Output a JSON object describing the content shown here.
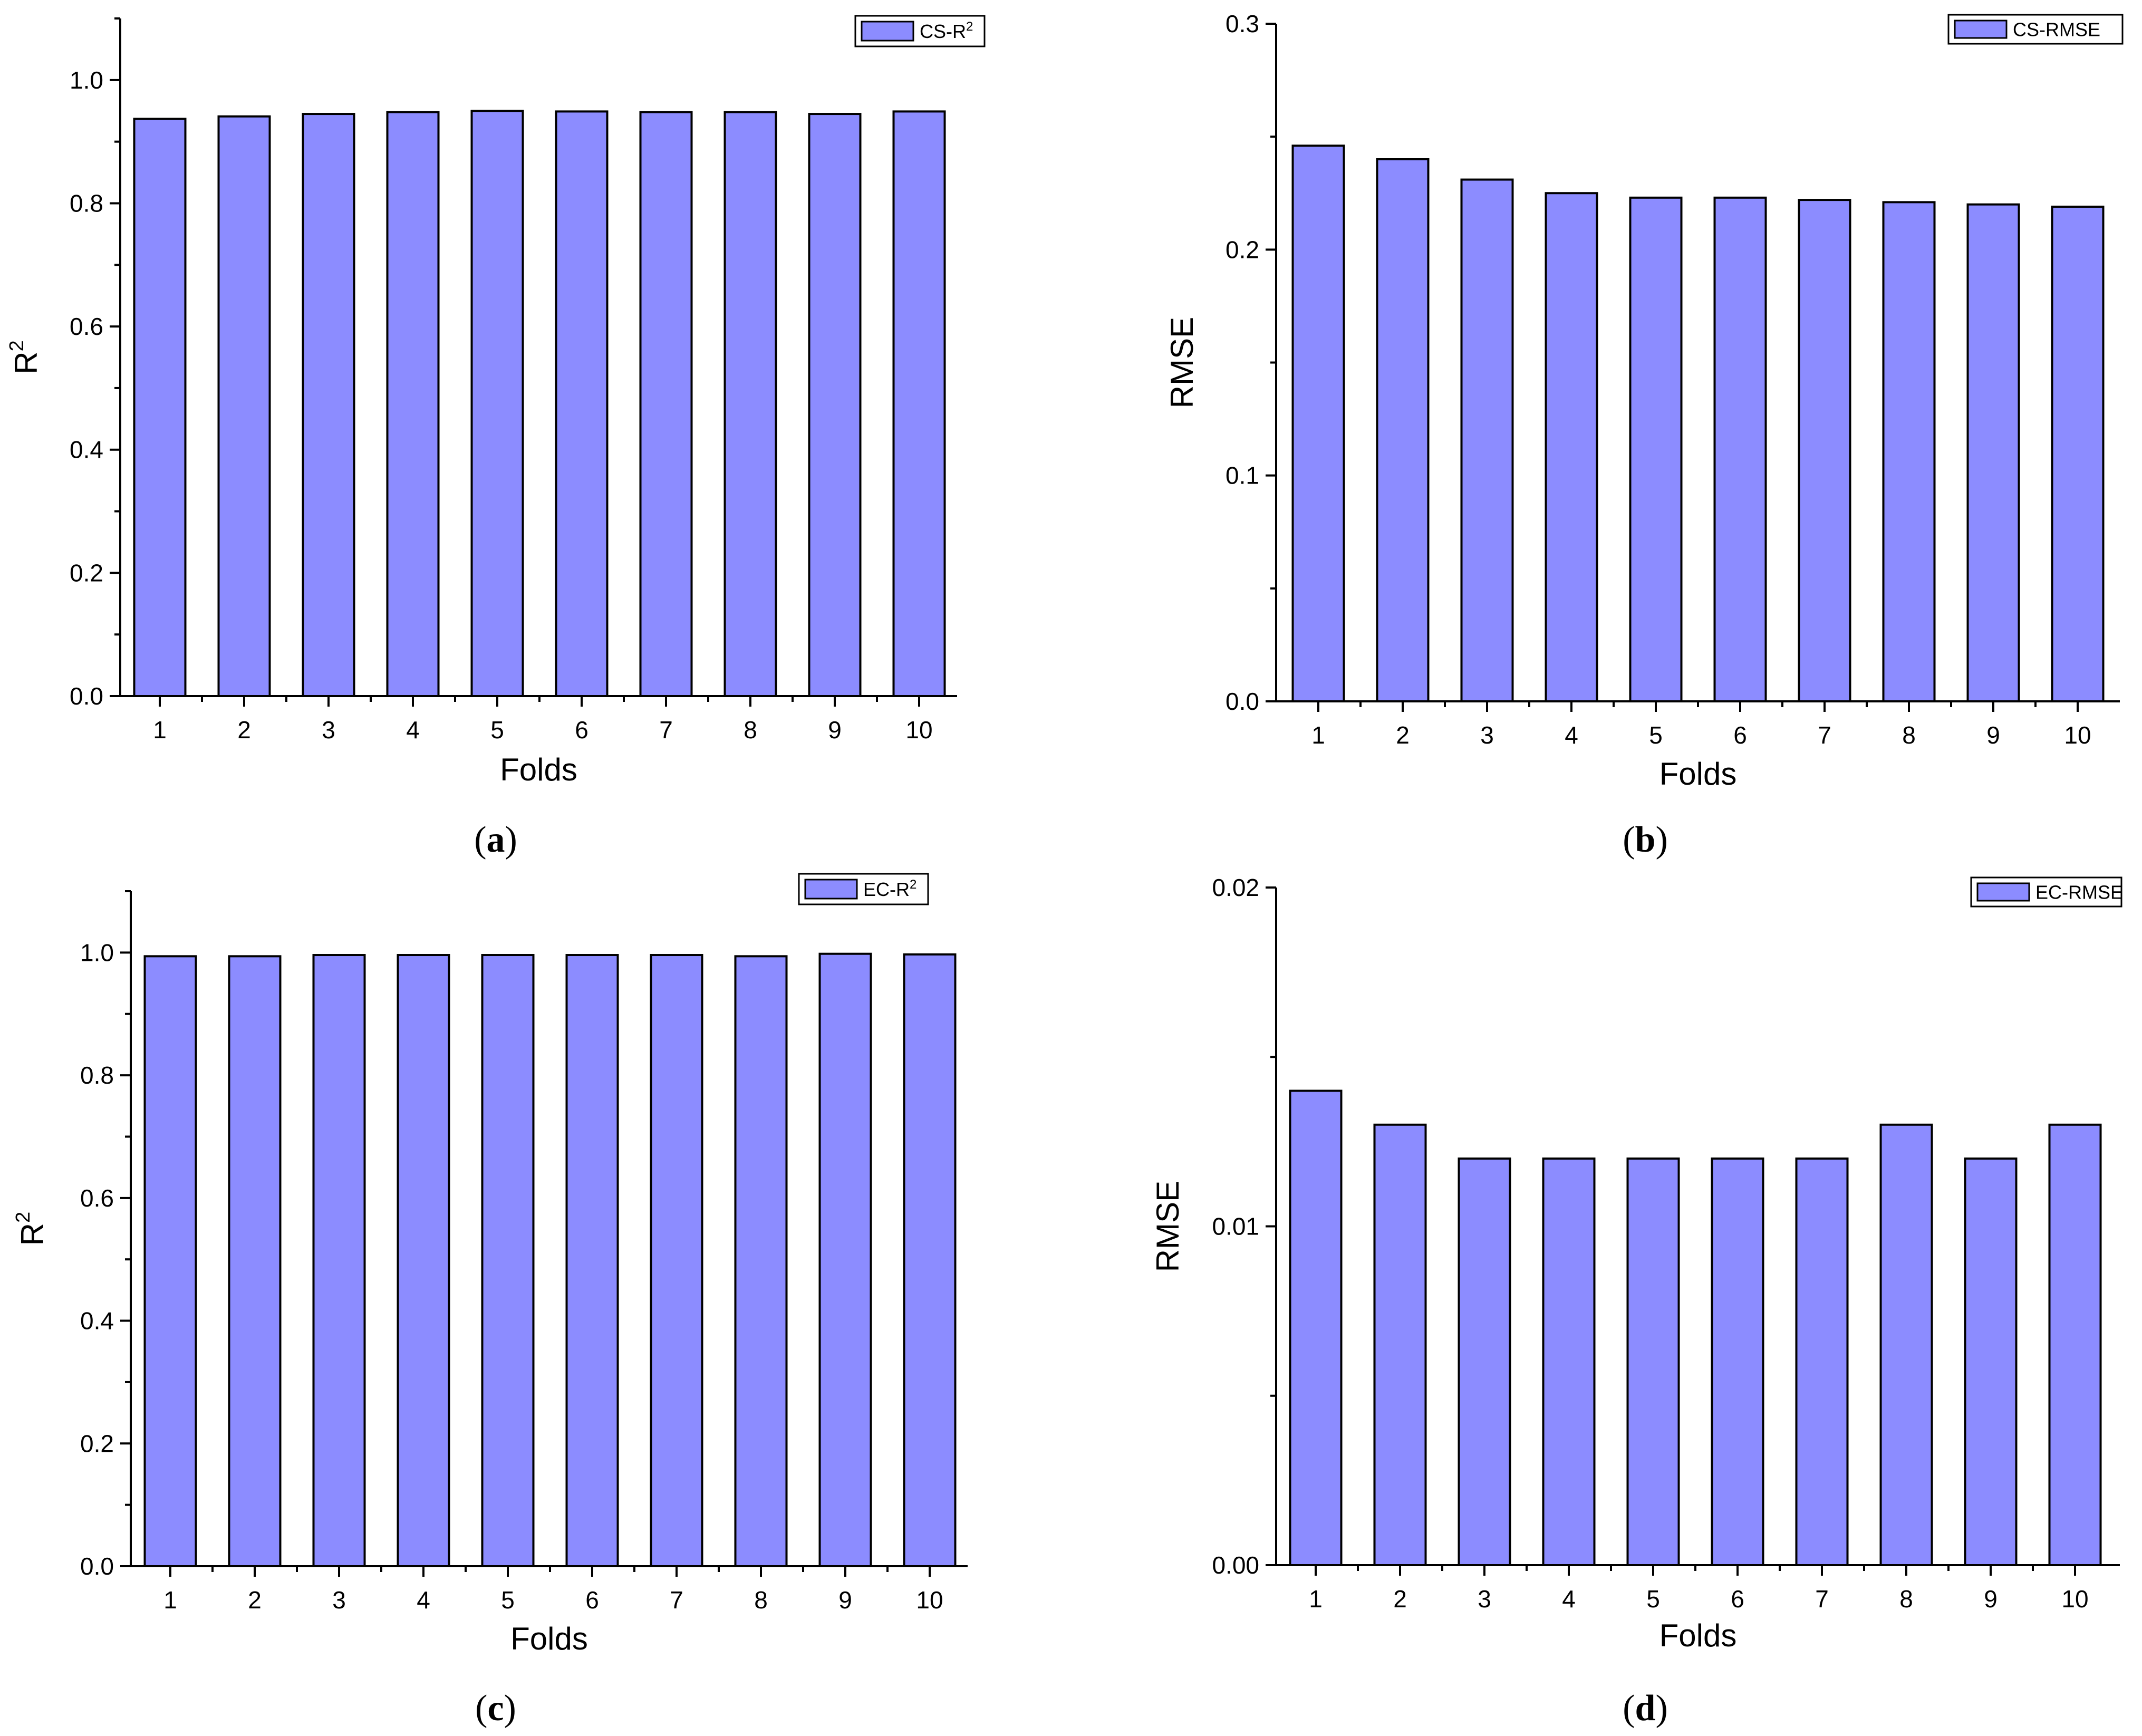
{
  "figure": {
    "bar_color": "#8c8cff",
    "edge_color": "#000000"
  },
  "chart_data": [
    {
      "id": "a",
      "type": "bar",
      "panel_label": "a",
      "title": "",
      "xlabel": "Folds",
      "ylabel_base": "R",
      "ylabel_sup": "2",
      "legend_base": "CS-R",
      "legend_sup": "2",
      "legend_placement": "top-right",
      "categories": [
        "1",
        "2",
        "3",
        "4",
        "5",
        "6",
        "7",
        "8",
        "9",
        "10"
      ],
      "values": [
        0.937,
        0.941,
        0.945,
        0.948,
        0.95,
        0.949,
        0.948,
        0.948,
        0.945,
        0.949
      ],
      "ylim": [
        0,
        1.1
      ],
      "yticks": [
        0.0,
        0.2,
        0.4,
        0.6,
        0.8,
        1.0
      ],
      "ytick_labels": [
        "0.0",
        "0.2",
        "0.4",
        "0.6",
        "0.8",
        "1.0"
      ],
      "minor_yticks": [
        0.1,
        0.3,
        0.5,
        0.7,
        0.9,
        1.1
      ]
    },
    {
      "id": "b",
      "type": "bar",
      "panel_label": "b",
      "title": "",
      "xlabel": "Folds",
      "ylabel_base": "RMSE",
      "ylabel_sup": "",
      "legend_base": "CS-RMSE",
      "legend_sup": "",
      "legend_placement": "top-right",
      "categories": [
        "1",
        "2",
        "3",
        "4",
        "5",
        "6",
        "7",
        "8",
        "9",
        "10"
      ],
      "values": [
        0.246,
        0.24,
        0.231,
        0.225,
        0.223,
        0.223,
        0.222,
        0.221,
        0.22,
        0.219
      ],
      "ylim": [
        0,
        0.3
      ],
      "yticks": [
        0.0,
        0.1,
        0.2,
        0.3
      ],
      "ytick_labels": [
        "0.0",
        "0.1",
        "0.2",
        "0.3"
      ],
      "minor_yticks": [
        0.05,
        0.15,
        0.25
      ]
    },
    {
      "id": "c",
      "type": "bar",
      "panel_label": "c",
      "title": "",
      "xlabel": "Folds",
      "ylabel_base": "R",
      "ylabel_sup": "2",
      "legend_base": "EC-R",
      "legend_sup": "2",
      "legend_placement": "top-right",
      "categories": [
        "1",
        "2",
        "3",
        "4",
        "5",
        "6",
        "7",
        "8",
        "9",
        "10"
      ],
      "values": [
        0.994,
        0.994,
        0.996,
        0.996,
        0.996,
        0.996,
        0.996,
        0.994,
        0.998,
        0.997
      ],
      "ylim": [
        0,
        1.1
      ],
      "yticks": [
        0.0,
        0.2,
        0.4,
        0.6,
        0.8,
        1.0
      ],
      "ytick_labels": [
        "0.0",
        "0.2",
        "0.4",
        "0.6",
        "0.8",
        "1.0"
      ],
      "minor_yticks": [
        0.1,
        0.3,
        0.5,
        0.7,
        0.9,
        1.1
      ]
    },
    {
      "id": "d",
      "type": "bar",
      "panel_label": "d",
      "title": "",
      "xlabel": "Folds",
      "ylabel_base": "RMSE",
      "ylabel_sup": "",
      "legend_base": "EC-RMSE",
      "legend_sup": "",
      "legend_placement": "top-right",
      "categories": [
        "1",
        "2",
        "3",
        "4",
        "5",
        "6",
        "7",
        "8",
        "9",
        "10"
      ],
      "values": [
        0.014,
        0.013,
        0.012,
        0.012,
        0.012,
        0.012,
        0.012,
        0.013,
        0.012,
        0.013
      ],
      "ylim": [
        0,
        0.02
      ],
      "yticks": [
        0.0,
        0.01,
        0.02
      ],
      "ytick_labels": [
        "0.00",
        "0.01",
        "0.02"
      ],
      "minor_yticks": [
        0.005,
        0.015
      ]
    }
  ]
}
